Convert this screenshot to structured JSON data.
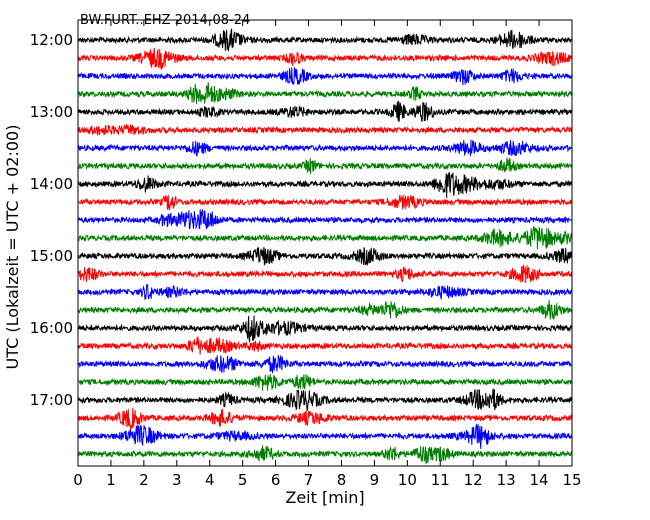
{
  "chart_data": {
    "type": "line",
    "title": "BW.FURT..EHZ 2014-08-24",
    "xlabel": "Zeit  [min]",
    "ylabel": "UTC (Lokalzeit = UTC + 02:00)",
    "xlim": [
      0,
      15
    ],
    "x_ticks": [
      "0",
      "1",
      "2",
      "3",
      "4",
      "5",
      "6",
      "7",
      "8",
      "9",
      "10",
      "11",
      "12",
      "13",
      "14",
      "15"
    ],
    "y_ticks": [
      "12:00",
      "13:00",
      "14:00",
      "15:00",
      "16:00",
      "17:00"
    ],
    "grid": false,
    "trace_colors": [
      "#000000",
      "#ff0000",
      "#0000ff",
      "#008000"
    ],
    "traces": [
      {
        "start": "12:00",
        "color": "#000000"
      },
      {
        "start": "12:15",
        "color": "#ff0000"
      },
      {
        "start": "12:30",
        "color": "#0000ff"
      },
      {
        "start": "12:45",
        "color": "#008000"
      },
      {
        "start": "13:00",
        "color": "#000000"
      },
      {
        "start": "13:15",
        "color": "#ff0000"
      },
      {
        "start": "13:30",
        "color": "#0000ff"
      },
      {
        "start": "13:45",
        "color": "#008000"
      },
      {
        "start": "14:00",
        "color": "#000000"
      },
      {
        "start": "14:15",
        "color": "#ff0000"
      },
      {
        "start": "14:30",
        "color": "#0000ff"
      },
      {
        "start": "14:45",
        "color": "#008000"
      },
      {
        "start": "15:00",
        "color": "#000000"
      },
      {
        "start": "15:15",
        "color": "#ff0000"
      },
      {
        "start": "15:30",
        "color": "#0000ff"
      },
      {
        "start": "15:45",
        "color": "#008000"
      },
      {
        "start": "16:00",
        "color": "#000000"
      },
      {
        "start": "16:15",
        "color": "#ff0000"
      },
      {
        "start": "16:30",
        "color": "#0000ff"
      },
      {
        "start": "16:45",
        "color": "#008000"
      },
      {
        "start": "17:00",
        "color": "#000000"
      },
      {
        "start": "17:15",
        "color": "#ff0000"
      },
      {
        "start": "17:30",
        "color": "#0000ff"
      },
      {
        "start": "17:45",
        "color": "#008000"
      }
    ]
  }
}
